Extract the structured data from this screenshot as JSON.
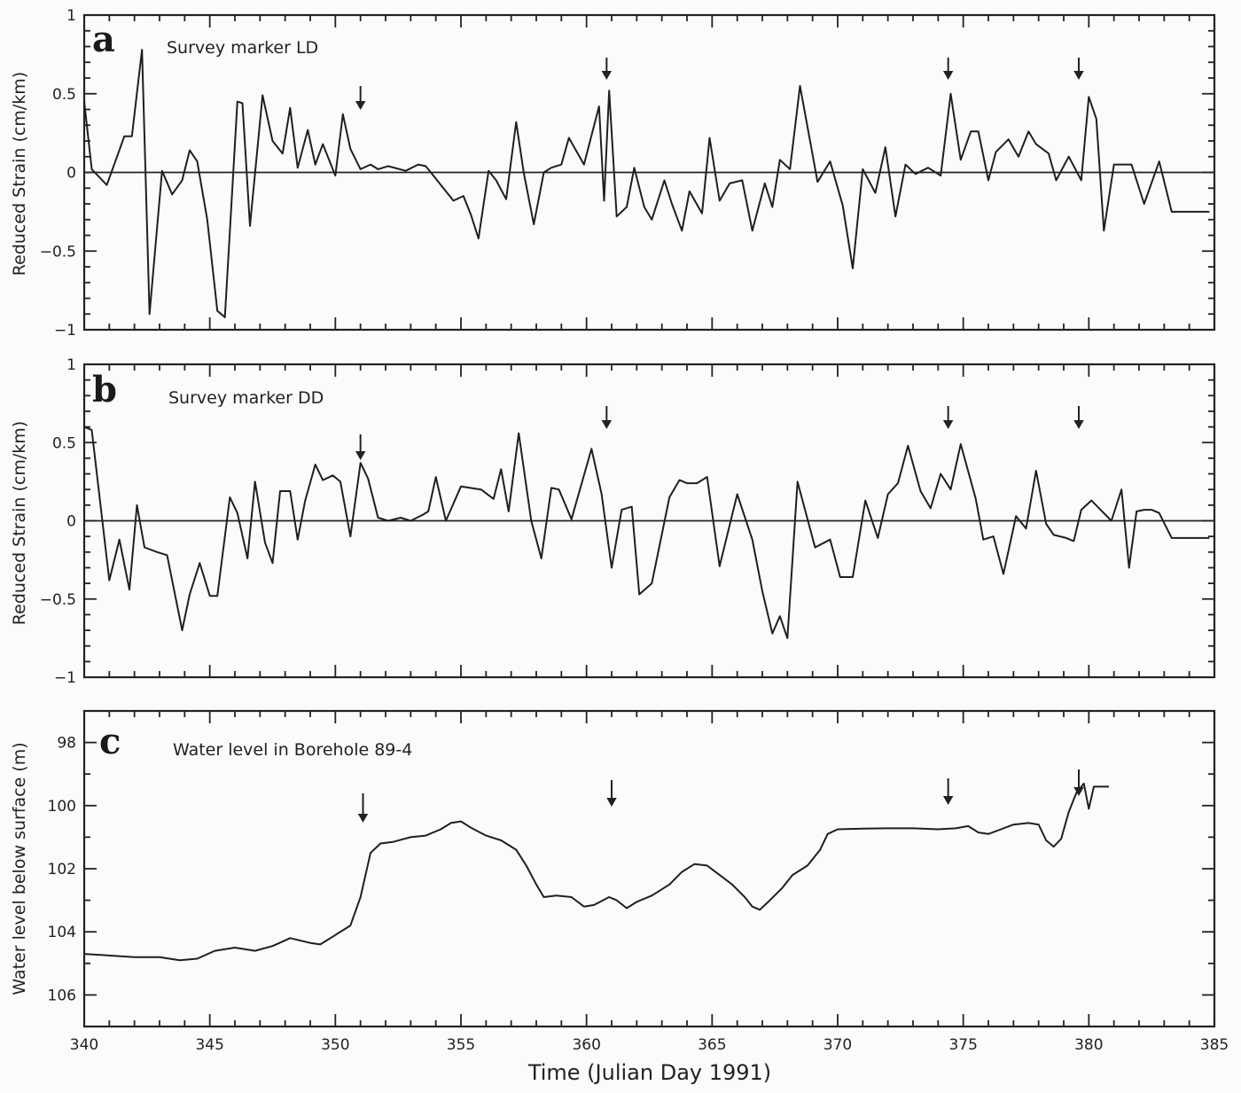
{
  "figure": {
    "xlabel": "Time (Julian Day 1991)",
    "x_ticks": [
      "340",
      "345",
      "350",
      "355",
      "360",
      "365",
      "370",
      "375",
      "380",
      "385"
    ]
  },
  "panels": {
    "a": {
      "letter": "a",
      "title": "Survey marker LD",
      "ylabel": "Reduced Strain (cm/km)",
      "y_ticks": [
        "1",
        "0.5",
        "0",
        "-0.5",
        "-1"
      ]
    },
    "b": {
      "letter": "b",
      "title": "Survey marker DD",
      "ylabel": "Reduced Strain (cm/km)",
      "y_ticks": [
        "1",
        "0.5",
        "0",
        "-0.5",
        "-1"
      ]
    },
    "c": {
      "letter": "c",
      "title": "Water level in Borehole 89-4",
      "ylabel": "Water level below surface (m)",
      "y_ticks": [
        "98",
        "100",
        "102",
        "104",
        "106"
      ]
    }
  },
  "chart_data": [
    {
      "type": "line",
      "panel": "a",
      "title": "Survey marker LD",
      "xlabel": "Time (Julian Day 1991)",
      "ylabel": "Reduced Strain (cm/km)",
      "xlim": [
        340,
        385
      ],
      "ylim": [
        -1,
        1
      ],
      "x_ticks": [
        340,
        345,
        350,
        355,
        360,
        365,
        370,
        375,
        380,
        385
      ],
      "y_ticks": [
        -1,
        -0.5,
        0,
        0.5,
        1
      ],
      "reference_line": 0,
      "arrows_at_day": [
        351.0,
        360.8,
        374.4,
        379.6
      ],
      "x": [
        340.0,
        340.3,
        340.9,
        341.6,
        341.9,
        342.3,
        342.6,
        343.1,
        343.5,
        343.9,
        344.2,
        344.5,
        344.9,
        345.3,
        345.6,
        346.1,
        346.3,
        346.6,
        347.1,
        347.5,
        347.9,
        348.2,
        348.5,
        348.9,
        349.2,
        349.5,
        350.0,
        350.3,
        350.6,
        351.0,
        351.4,
        351.7,
        352.1,
        352.8,
        353.3,
        353.6,
        354.3,
        354.7,
        355.1,
        355.4,
        355.7,
        356.1,
        356.4,
        356.8,
        357.2,
        357.5,
        357.9,
        358.3,
        358.6,
        359.0,
        359.3,
        359.9,
        360.5,
        360.7,
        360.9,
        361.2,
        361.6,
        361.9,
        362.3,
        362.6,
        363.1,
        363.4,
        363.8,
        364.1,
        364.6,
        364.9,
        365.3,
        365.7,
        366.2,
        366.6,
        367.1,
        367.4,
        367.7,
        368.1,
        368.5,
        369.2,
        369.7,
        370.2,
        370.6,
        371.0,
        371.5,
        371.9,
        372.3,
        372.7,
        373.1,
        373.6,
        374.1,
        374.5,
        374.9,
        375.3,
        375.6,
        376.0,
        376.3,
        376.8,
        377.2,
        377.6,
        377.9,
        378.4,
        378.7,
        379.2,
        379.7,
        380.0,
        380.3,
        380.6,
        381.0,
        381.3,
        381.7,
        382.2,
        382.8,
        383.3,
        383.7,
        384.2,
        384.8
      ],
      "y": [
        0.45,
        0.02,
        -0.08,
        0.23,
        0.23,
        0.78,
        -0.9,
        0.01,
        -0.14,
        -0.05,
        0.14,
        0.07,
        -0.3,
        -0.88,
        -0.92,
        0.45,
        0.44,
        -0.34,
        0.49,
        0.2,
        0.12,
        0.41,
        0.03,
        0.27,
        0.05,
        0.18,
        -0.02,
        0.37,
        0.15,
        0.02,
        0.05,
        0.02,
        0.04,
        0.01,
        0.05,
        0.04,
        -0.1,
        -0.18,
        -0.15,
        -0.27,
        -0.42,
        0.01,
        -0.05,
        -0.17,
        0.32,
        0.0,
        -0.33,
        0.0,
        0.03,
        0.05,
        0.22,
        0.05,
        0.42,
        -0.18,
        0.52,
        -0.28,
        -0.22,
        0.03,
        -0.22,
        -0.3,
        -0.05,
        -0.2,
        -0.37,
        -0.12,
        -0.26,
        0.22,
        -0.18,
        -0.07,
        -0.05,
        -0.37,
        -0.07,
        -0.22,
        0.08,
        0.02,
        0.55,
        -0.06,
        0.07,
        -0.21,
        -0.61,
        0.02,
        -0.13,
        0.16,
        -0.28,
        0.05,
        -0.01,
        0.03,
        -0.02,
        0.5,
        0.08,
        0.26,
        0.26,
        -0.05,
        0.13,
        0.21,
        0.1,
        0.26,
        0.18,
        0.12,
        -0.05,
        0.1,
        -0.05,
        0.48,
        0.34,
        -0.37,
        0.05,
        0.05,
        0.05,
        -0.2,
        0.07,
        -0.25,
        -0.25,
        -0.25,
        -0.25
      ],
      "_note": "values read off pixels; last few points truncated at plotted end ~384.8"
    },
    {
      "type": "line",
      "panel": "b",
      "title": "Survey marker DD",
      "xlabel": "Time (Julian Day 1991)",
      "ylabel": "Reduced Strain (cm/km)",
      "xlim": [
        340,
        385
      ],
      "ylim": [
        -1,
        1
      ],
      "x_ticks": [
        340,
        345,
        350,
        355,
        360,
        365,
        370,
        375,
        380,
        385
      ],
      "y_ticks": [
        -1,
        -0.5,
        0,
        0.5,
        1
      ],
      "reference_line": 0,
      "arrows_at_day": [
        351.0,
        360.8,
        374.4,
        379.6
      ],
      "x": [
        340.0,
        340.3,
        341.0,
        341.4,
        341.8,
        342.1,
        342.4,
        342.9,
        343.3,
        343.9,
        344.2,
        344.6,
        345.0,
        345.3,
        345.8,
        346.1,
        346.5,
        346.8,
        347.2,
        347.5,
        347.8,
        348.2,
        348.5,
        348.8,
        349.2,
        349.5,
        349.9,
        350.2,
        350.6,
        351.0,
        351.3,
        351.7,
        352.1,
        352.6,
        353.0,
        353.5,
        353.7,
        354.0,
        354.4,
        355.0,
        355.8,
        356.3,
        356.6,
        356.9,
        357.3,
        357.8,
        358.2,
        358.6,
        358.9,
        359.4,
        360.2,
        360.6,
        361.0,
        361.4,
        361.8,
        362.1,
        362.6,
        363.3,
        363.7,
        364.0,
        364.4,
        364.8,
        365.3,
        366.0,
        366.6,
        367.0,
        367.4,
        367.7,
        368.0,
        368.4,
        369.1,
        369.7,
        370.1,
        370.6,
        371.1,
        371.6,
        372.0,
        372.4,
        372.8,
        373.3,
        373.7,
        374.1,
        374.5,
        374.9,
        375.5,
        375.8,
        376.2,
        376.6,
        377.1,
        377.5,
        377.9,
        378.3,
        378.6,
        379.1,
        379.4,
        379.7,
        380.1,
        380.9,
        381.3,
        381.6,
        381.9,
        382.2,
        382.5,
        382.8,
        383.3,
        383.9,
        384.3,
        384.8
      ],
      "y": [
        0.6,
        0.58,
        -0.38,
        -0.12,
        -0.44,
        0.1,
        -0.17,
        -0.2,
        -0.22,
        -0.7,
        -0.47,
        -0.27,
        -0.48,
        -0.48,
        0.15,
        0.05,
        -0.24,
        0.25,
        -0.14,
        -0.27,
        0.19,
        0.19,
        -0.12,
        0.13,
        0.36,
        0.26,
        0.29,
        0.25,
        -0.1,
        0.37,
        0.27,
        0.02,
        0.0,
        0.02,
        0.0,
        0.04,
        0.06,
        0.28,
        0.0,
        0.22,
        0.2,
        0.14,
        0.33,
        0.06,
        0.56,
        0.0,
        -0.24,
        0.21,
        0.2,
        0.01,
        0.46,
        0.17,
        -0.3,
        0.07,
        0.09,
        -0.47,
        -0.4,
        0.15,
        0.26,
        0.24,
        0.24,
        0.28,
        -0.29,
        0.17,
        -0.12,
        -0.45,
        -0.72,
        -0.61,
        -0.75,
        0.25,
        -0.17,
        -0.12,
        -0.36,
        -0.36,
        0.13,
        -0.11,
        0.17,
        0.24,
        0.48,
        0.19,
        0.08,
        0.3,
        0.2,
        0.49,
        0.14,
        -0.12,
        -0.1,
        -0.34,
        0.03,
        -0.05,
        0.32,
        -0.02,
        -0.09,
        -0.11,
        -0.13,
        0.07,
        0.13,
        0.0,
        0.2,
        -0.3,
        0.06,
        0.07,
        0.07,
        0.05,
        -0.11,
        -0.11,
        -0.11,
        -0.11
      ],
      "_note": "values read off pixels"
    },
    {
      "type": "line",
      "panel": "c",
      "title": "Water level in Borehole 89-4",
      "xlabel": "Time (Julian Day 1991)",
      "ylabel": "Water level below surface (m)",
      "xlim": [
        340,
        385
      ],
      "ylim": [
        107,
        97
      ],
      "y_inverted": true,
      "x_ticks": [
        340,
        345,
        350,
        355,
        360,
        365,
        370,
        375,
        380,
        385
      ],
      "y_ticks": [
        98,
        100,
        102,
        104,
        106
      ],
      "arrows_at_day": [
        351.1,
        361.0,
        374.4,
        379.6
      ],
      "x": [
        340.0,
        341.0,
        342.0,
        343.0,
        343.8,
        344.5,
        345.2,
        346.0,
        346.8,
        347.5,
        348.2,
        349.0,
        349.4,
        350.0,
        350.6,
        351.0,
        351.4,
        351.8,
        352.3,
        353.0,
        353.6,
        354.2,
        354.6,
        355.0,
        355.4,
        356.0,
        356.6,
        357.2,
        357.6,
        358.0,
        358.3,
        358.8,
        359.4,
        359.9,
        360.3,
        360.9,
        361.2,
        361.6,
        362.0,
        362.6,
        363.3,
        363.8,
        364.3,
        364.8,
        365.3,
        365.8,
        366.3,
        366.6,
        366.9,
        367.3,
        367.8,
        368.2,
        368.8,
        369.3,
        369.6,
        370.0,
        371.0,
        372.0,
        373.0,
        374.0,
        374.7,
        375.2,
        375.6,
        376.0,
        376.5,
        377.0,
        377.6,
        378.0,
        378.3,
        378.6,
        378.9,
        379.2,
        379.5,
        379.8,
        380.0,
        380.2,
        380.5,
        380.8
      ],
      "y": [
        104.7,
        104.75,
        104.8,
        104.8,
        104.9,
        104.85,
        104.6,
        104.5,
        104.6,
        104.45,
        104.2,
        104.35,
        104.4,
        104.1,
        103.8,
        102.9,
        101.5,
        101.2,
        101.15,
        101.0,
        100.95,
        100.75,
        100.55,
        100.5,
        100.7,
        100.95,
        101.1,
        101.4,
        101.9,
        102.5,
        102.9,
        102.85,
        102.9,
        103.2,
        103.15,
        102.9,
        103.0,
        103.25,
        103.05,
        102.85,
        102.5,
        102.1,
        101.85,
        101.9,
        102.2,
        102.5,
        102.9,
        103.2,
        103.3,
        103.0,
        102.6,
        102.2,
        101.9,
        101.4,
        100.9,
        100.75,
        100.73,
        100.72,
        100.72,
        100.75,
        100.72,
        100.65,
        100.85,
        100.9,
        100.75,
        100.6,
        100.55,
        100.6,
        101.1,
        101.3,
        101.05,
        100.2,
        99.6,
        99.3,
        100.1,
        99.4,
        99.4,
        99.4
      ],
      "_note": "values read off pixels; record ends near day 380.8"
    }
  ]
}
